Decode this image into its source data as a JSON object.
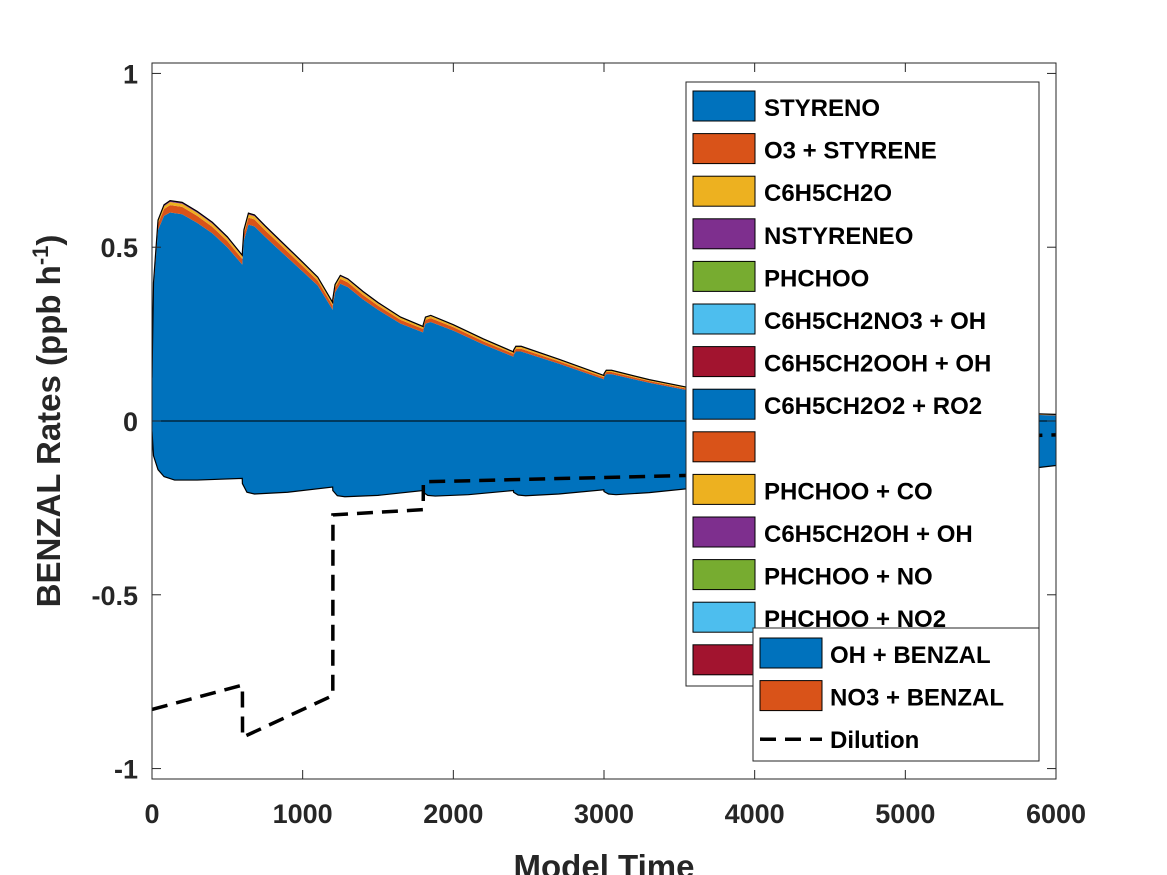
{
  "chart_data": {
    "type": "area",
    "xlabel": "Model Time",
    "ylabel": "BENZAL Rates (ppb h",
    "ylabel_sup": "-1",
    "ylabel_end": ")",
    "xlim": [
      0,
      6000
    ],
    "ylim": [
      -1.03,
      1.03
    ],
    "xticks": [
      0,
      1000,
      2000,
      3000,
      4000,
      5000,
      6000
    ],
    "xtick_labels": [
      "0",
      "1000",
      "2000",
      "3000",
      "4000",
      "5000",
      "6000"
    ],
    "yticks": [
      -1,
      -0.5,
      0,
      0.5,
      1
    ],
    "ytick_labels": [
      "-1",
      "-0.5",
      "0",
      "0.5",
      "1"
    ],
    "grid": false,
    "production": {
      "x": [
        0,
        10,
        40,
        80,
        120,
        200,
        300,
        400,
        500,
        599,
        600,
        610,
        640,
        680,
        750,
        850,
        1000,
        1100,
        1199,
        1200,
        1215,
        1250,
        1300,
        1400,
        1500,
        1650,
        1799,
        1800,
        1815,
        1850,
        2000,
        2200,
        2399,
        2400,
        2415,
        2450,
        2700,
        2999,
        3000,
        3015,
        3050,
        3300,
        3599,
        3600,
        3615,
        3650,
        4000,
        4200,
        4500,
        4800,
        5100,
        5400,
        5700,
        6000
      ],
      "series": [
        {
          "name": "STYRENO",
          "color": "#0072BD",
          "values": [
            0.12,
            0.38,
            0.55,
            0.59,
            0.6,
            0.595,
            0.57,
            0.54,
            0.5,
            0.45,
            0.46,
            0.52,
            0.565,
            0.56,
            0.53,
            0.49,
            0.43,
            0.39,
            0.32,
            0.33,
            0.37,
            0.395,
            0.385,
            0.35,
            0.32,
            0.28,
            0.255,
            0.26,
            0.28,
            0.285,
            0.26,
            0.22,
            0.185,
            0.19,
            0.2,
            0.2,
            0.165,
            0.12,
            0.125,
            0.135,
            0.135,
            0.11,
            0.085,
            0.088,
            0.095,
            0.095,
            0.075,
            0.065,
            0.05,
            0.04,
            0.032,
            0.026,
            0.02,
            0.016
          ]
        },
        {
          "name": "O3 + STYRENE",
          "color": "#D95319",
          "values": [
            0.003,
            0.012,
            0.018,
            0.02,
            0.021,
            0.021,
            0.02,
            0.019,
            0.018,
            0.016,
            0.016,
            0.018,
            0.02,
            0.02,
            0.019,
            0.018,
            0.016,
            0.014,
            0.012,
            0.012,
            0.013,
            0.014,
            0.014,
            0.013,
            0.012,
            0.011,
            0.01,
            0.01,
            0.011,
            0.011,
            0.01,
            0.009,
            0.008,
            0.008,
            0.008,
            0.008,
            0.007,
            0.006,
            0.006,
            0.006,
            0.006,
            0.005,
            0.004,
            0.004,
            0.004,
            0.004,
            0.003,
            0.003,
            0.002,
            0.002,
            0.002,
            0.001,
            0.001,
            0.001
          ]
        },
        {
          "name": "C6H5CH2O",
          "color": "#EDB120",
          "values": [
            0.001,
            0.004,
            0.007,
            0.008,
            0.009,
            0.009,
            0.009,
            0.009,
            0.008,
            0.008,
            0.008,
            0.008,
            0.009,
            0.009,
            0.009,
            0.008,
            0.008,
            0.007,
            0.006,
            0.006,
            0.007,
            0.007,
            0.007,
            0.007,
            0.006,
            0.006,
            0.005,
            0.005,
            0.006,
            0.006,
            0.005,
            0.005,
            0.004,
            0.004,
            0.005,
            0.005,
            0.004,
            0.004,
            0.004,
            0.004,
            0.004,
            0.003,
            0.003,
            0.003,
            0.003,
            0.003,
            0.002,
            0.002,
            0.002,
            0.002,
            0.001,
            0.001,
            0.001,
            0.001
          ]
        },
        {
          "name": "NSTYRENEO",
          "color": "#7E2F8E",
          "values": [
            0.001,
            0.002,
            0.003,
            0.004,
            0.004,
            0.004,
            0.004,
            0.004,
            0.004,
            0.003,
            0.003,
            0.004,
            0.004,
            0.004,
            0.004,
            0.004,
            0.003,
            0.003,
            0.003,
            0.003,
            0.003,
            0.003,
            0.003,
            0.003,
            0.003,
            0.002,
            0.002,
            0.002,
            0.002,
            0.002,
            0.002,
            0.002,
            0.002,
            0.002,
            0.002,
            0.002,
            0.002,
            0.001,
            0.001,
            0.001,
            0.001,
            0.001,
            0.001,
            0.001,
            0.001,
            0.001,
            0.001,
            0.001,
            0.001,
            0.001,
            0.001,
            0.001,
            0.001,
            0.001
          ]
        }
      ]
    },
    "loss": {
      "x": [
        0,
        10,
        40,
        80,
        150,
        300,
        599,
        600,
        630,
        680,
        900,
        1199,
        1200,
        1230,
        1280,
        1500,
        1799,
        1800,
        1830,
        1880,
        2100,
        2399,
        2400,
        2430,
        2480,
        2700,
        2999,
        3000,
        3030,
        3080,
        3300,
        3599,
        3600,
        3630,
        3680,
        3900,
        4199,
        4200,
        4230,
        4280,
        4500,
        4799,
        4800,
        4830,
        4880,
        5100,
        5399,
        5400,
        5430,
        5480,
        5700,
        6000
      ],
      "series": [
        {
          "name": "OH + BENZAL",
          "color": "#0072BD",
          "values": [
            -0.03,
            -0.1,
            -0.14,
            -0.16,
            -0.17,
            -0.17,
            -0.165,
            -0.18,
            -0.205,
            -0.21,
            -0.205,
            -0.19,
            -0.2,
            -0.215,
            -0.218,
            -0.214,
            -0.2,
            -0.205,
            -0.214,
            -0.216,
            -0.212,
            -0.2,
            -0.205,
            -0.213,
            -0.215,
            -0.21,
            -0.198,
            -0.203,
            -0.21,
            -0.212,
            -0.206,
            -0.193,
            -0.198,
            -0.204,
            -0.205,
            -0.198,
            -0.185,
            -0.19,
            -0.192,
            -0.192,
            -0.183,
            -0.17,
            -0.172,
            -0.174,
            -0.174,
            -0.165,
            -0.15,
            -0.152,
            -0.153,
            -0.153,
            -0.143,
            -0.128
          ]
        },
        {
          "name": "NO3 + BENZAL",
          "color": "#D95319",
          "values": [
            0,
            0,
            0,
            0,
            0,
            0,
            0,
            0,
            0,
            0,
            0,
            0,
            0,
            0,
            0,
            0,
            0,
            0,
            0,
            0,
            0,
            0,
            0,
            0,
            0,
            0,
            0,
            0,
            0,
            0,
            0,
            0,
            0,
            0,
            0,
            0,
            0,
            0,
            0,
            0,
            0,
            0,
            0,
            0,
            0,
            0,
            0,
            0,
            0,
            0,
            0,
            0
          ]
        }
      ]
    },
    "dilution": {
      "name": "Dilution",
      "x": [
        0,
        599,
        600,
        601,
        1199,
        1200,
        1201,
        1799,
        1800,
        1801,
        4199,
        4200,
        4201,
        4799,
        4800,
        4801,
        6000
      ],
      "y": [
        -0.83,
        -0.76,
        -0.76,
        -0.91,
        -0.79,
        -0.79,
        -0.27,
        -0.255,
        -0.255,
        -0.175,
        -0.15,
        -0.15,
        -0.08,
        -0.065,
        -0.065,
        -0.055,
        -0.04
      ]
    },
    "legend_main": {
      "placement": "top-right",
      "entries": [
        {
          "label": "STYRENO",
          "color": "#0072BD"
        },
        {
          "label": "O3 + STYRENE",
          "color": "#D95319"
        },
        {
          "label": "C6H5CH2O",
          "color": "#EDB120"
        },
        {
          "label": "NSTYRENEO",
          "color": "#7E2F8E"
        },
        {
          "label": "PHCHOO",
          "color": "#77AC30"
        },
        {
          "label": "C6H5CH2NO3 + OH",
          "color": "#4DBEEE"
        },
        {
          "label": "C6H5CH2OOH + OH",
          "color": "#A2142F"
        },
        {
          "label": "C6H5CH2O2 + RO2",
          "color": "#0072BD"
        },
        {
          "label": "",
          "color": "#D95319"
        },
        {
          "label": "PHCHOO + CO",
          "color": "#EDB120"
        },
        {
          "label": "C6H5CH2OH + OH",
          "color": "#7E2F8E"
        },
        {
          "label": "PHCHOO + NO",
          "color": "#77AC30"
        },
        {
          "label": "PHCHOO + NO2",
          "color": "#4DBEEE"
        },
        {
          "label": "",
          "color": "#A2142F"
        }
      ]
    },
    "legend_loss": {
      "placement": "bottom-right",
      "entries": [
        {
          "label": "OH + BENZAL",
          "color": "#0072BD",
          "kind": "patch"
        },
        {
          "label": "NO3 + BENZAL",
          "color": "#D95319",
          "kind": "patch"
        },
        {
          "label": "Dilution",
          "color": "#000000",
          "kind": "dash"
        }
      ]
    }
  }
}
